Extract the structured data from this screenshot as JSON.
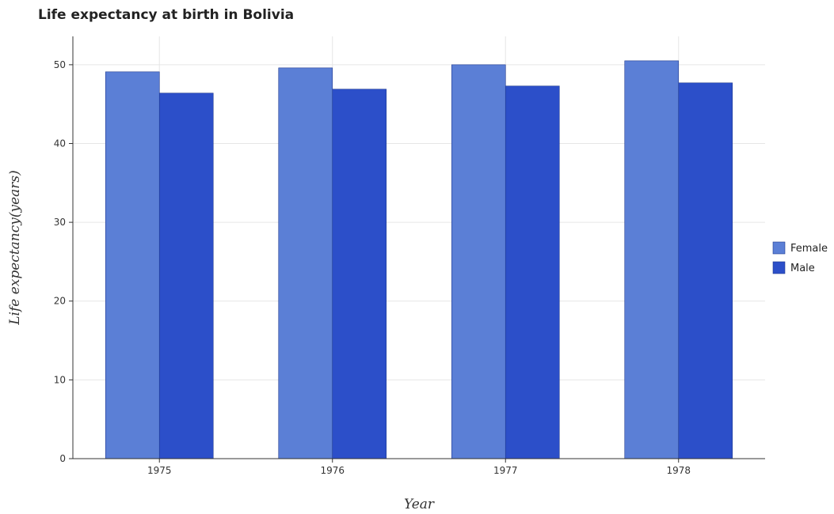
{
  "chart_data": {
    "type": "bar",
    "title": "Life expectancy at birth in Bolivia",
    "xlabel": "Year",
    "ylabel": "Life expectancy(years)",
    "categories": [
      "1975",
      "1976",
      "1977",
      "1978"
    ],
    "series": [
      {
        "name": "Female",
        "color": "#5b7fd6",
        "values": [
          49.1,
          49.6,
          50.0,
          50.5
        ]
      },
      {
        "name": "Male",
        "color": "#2c4fc9",
        "values": [
          46.4,
          46.9,
          47.3,
          47.7
        ]
      }
    ],
    "ylim": [
      0,
      53.6
    ],
    "yticks": [
      0,
      10,
      20,
      30,
      40,
      50
    ],
    "grid": true,
    "legend_position": "right"
  }
}
